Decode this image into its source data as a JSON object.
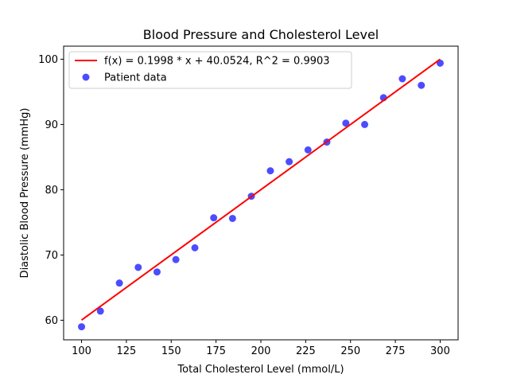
{
  "chart_data": {
    "type": "scatter",
    "title": "Blood Pressure and Cholesterol Level",
    "xlabel": "Total Cholesterol Level (mmol/L)",
    "ylabel": "Diastolic Blood Pressure (mmHg)",
    "xlim": [
      90,
      310
    ],
    "ylim": [
      57,
      102
    ],
    "xticks": [
      100,
      125,
      150,
      175,
      200,
      225,
      250,
      275,
      300
    ],
    "yticks": [
      60,
      70,
      80,
      90,
      100
    ],
    "grid": false,
    "legend_position": "top-left",
    "series": [
      {
        "name": "Patient data",
        "kind": "scatter",
        "color": "#0000ff",
        "x": [
          100,
          110.5,
          121.1,
          131.6,
          142.1,
          152.6,
          163.2,
          173.7,
          184.2,
          194.7,
          205.3,
          215.8,
          226.3,
          236.8,
          247.4,
          257.9,
          268.4,
          278.9,
          289.5,
          300
        ],
        "y": [
          59.0,
          61.4,
          65.7,
          68.1,
          67.4,
          69.3,
          71.1,
          75.7,
          75.6,
          79.0,
          82.9,
          84.3,
          86.1,
          87.3,
          90.2,
          90.0,
          94.1,
          97.0,
          96.0,
          99.4
        ]
      },
      {
        "name": "f(x) = 0.1998 * x + 40.0524, R^2 = 0.9903",
        "kind": "line",
        "color": "#ff0000",
        "x": [
          100,
          300
        ],
        "y": [
          60.03,
          99.99
        ]
      }
    ]
  }
}
